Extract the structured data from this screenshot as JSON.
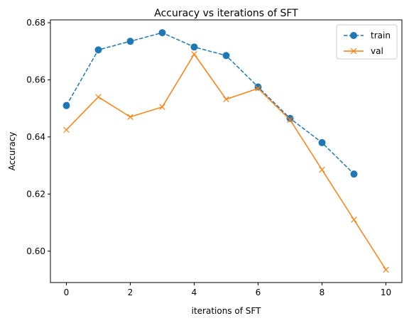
{
  "chart_data": {
    "type": "line",
    "title": "Accuracy vs iterations of SFT",
    "xlabel": "iterations of SFT",
    "ylabel": "Accuracy",
    "xlim": [
      -0.5,
      10.5
    ],
    "ylim": [
      0.589,
      0.681
    ],
    "xticks": [
      0,
      2,
      4,
      6,
      8,
      10
    ],
    "xtick_labels": [
      "0",
      "2",
      "4",
      "6",
      "8",
      "10"
    ],
    "yticks": [
      0.6,
      0.62,
      0.64,
      0.66,
      0.68
    ],
    "ytick_labels": [
      "0.60",
      "0.62",
      "0.64",
      "0.66",
      "0.68"
    ],
    "grid": false,
    "legend_position": "top-right",
    "series": [
      {
        "name": "train",
        "color": "#1f77b4",
        "linestyle": "dashed",
        "marker": "circle",
        "x": [
          0,
          1,
          2,
          3,
          4,
          5,
          6,
          7,
          8,
          9
        ],
        "y": [
          0.651,
          0.6705,
          0.6735,
          0.6765,
          0.6715,
          0.6685,
          0.6575,
          0.6465,
          0.638,
          0.627
        ]
      },
      {
        "name": "val",
        "color": "#ff7f0e",
        "linestyle": "solid",
        "marker": "x",
        "x": [
          0,
          1,
          2,
          3,
          4,
          5,
          6,
          7,
          8,
          9,
          10
        ],
        "y": [
          0.6425,
          0.654,
          0.647,
          0.6505,
          0.669,
          0.6532,
          0.657,
          0.646,
          0.6285,
          0.611,
          0.5935
        ]
      }
    ]
  }
}
